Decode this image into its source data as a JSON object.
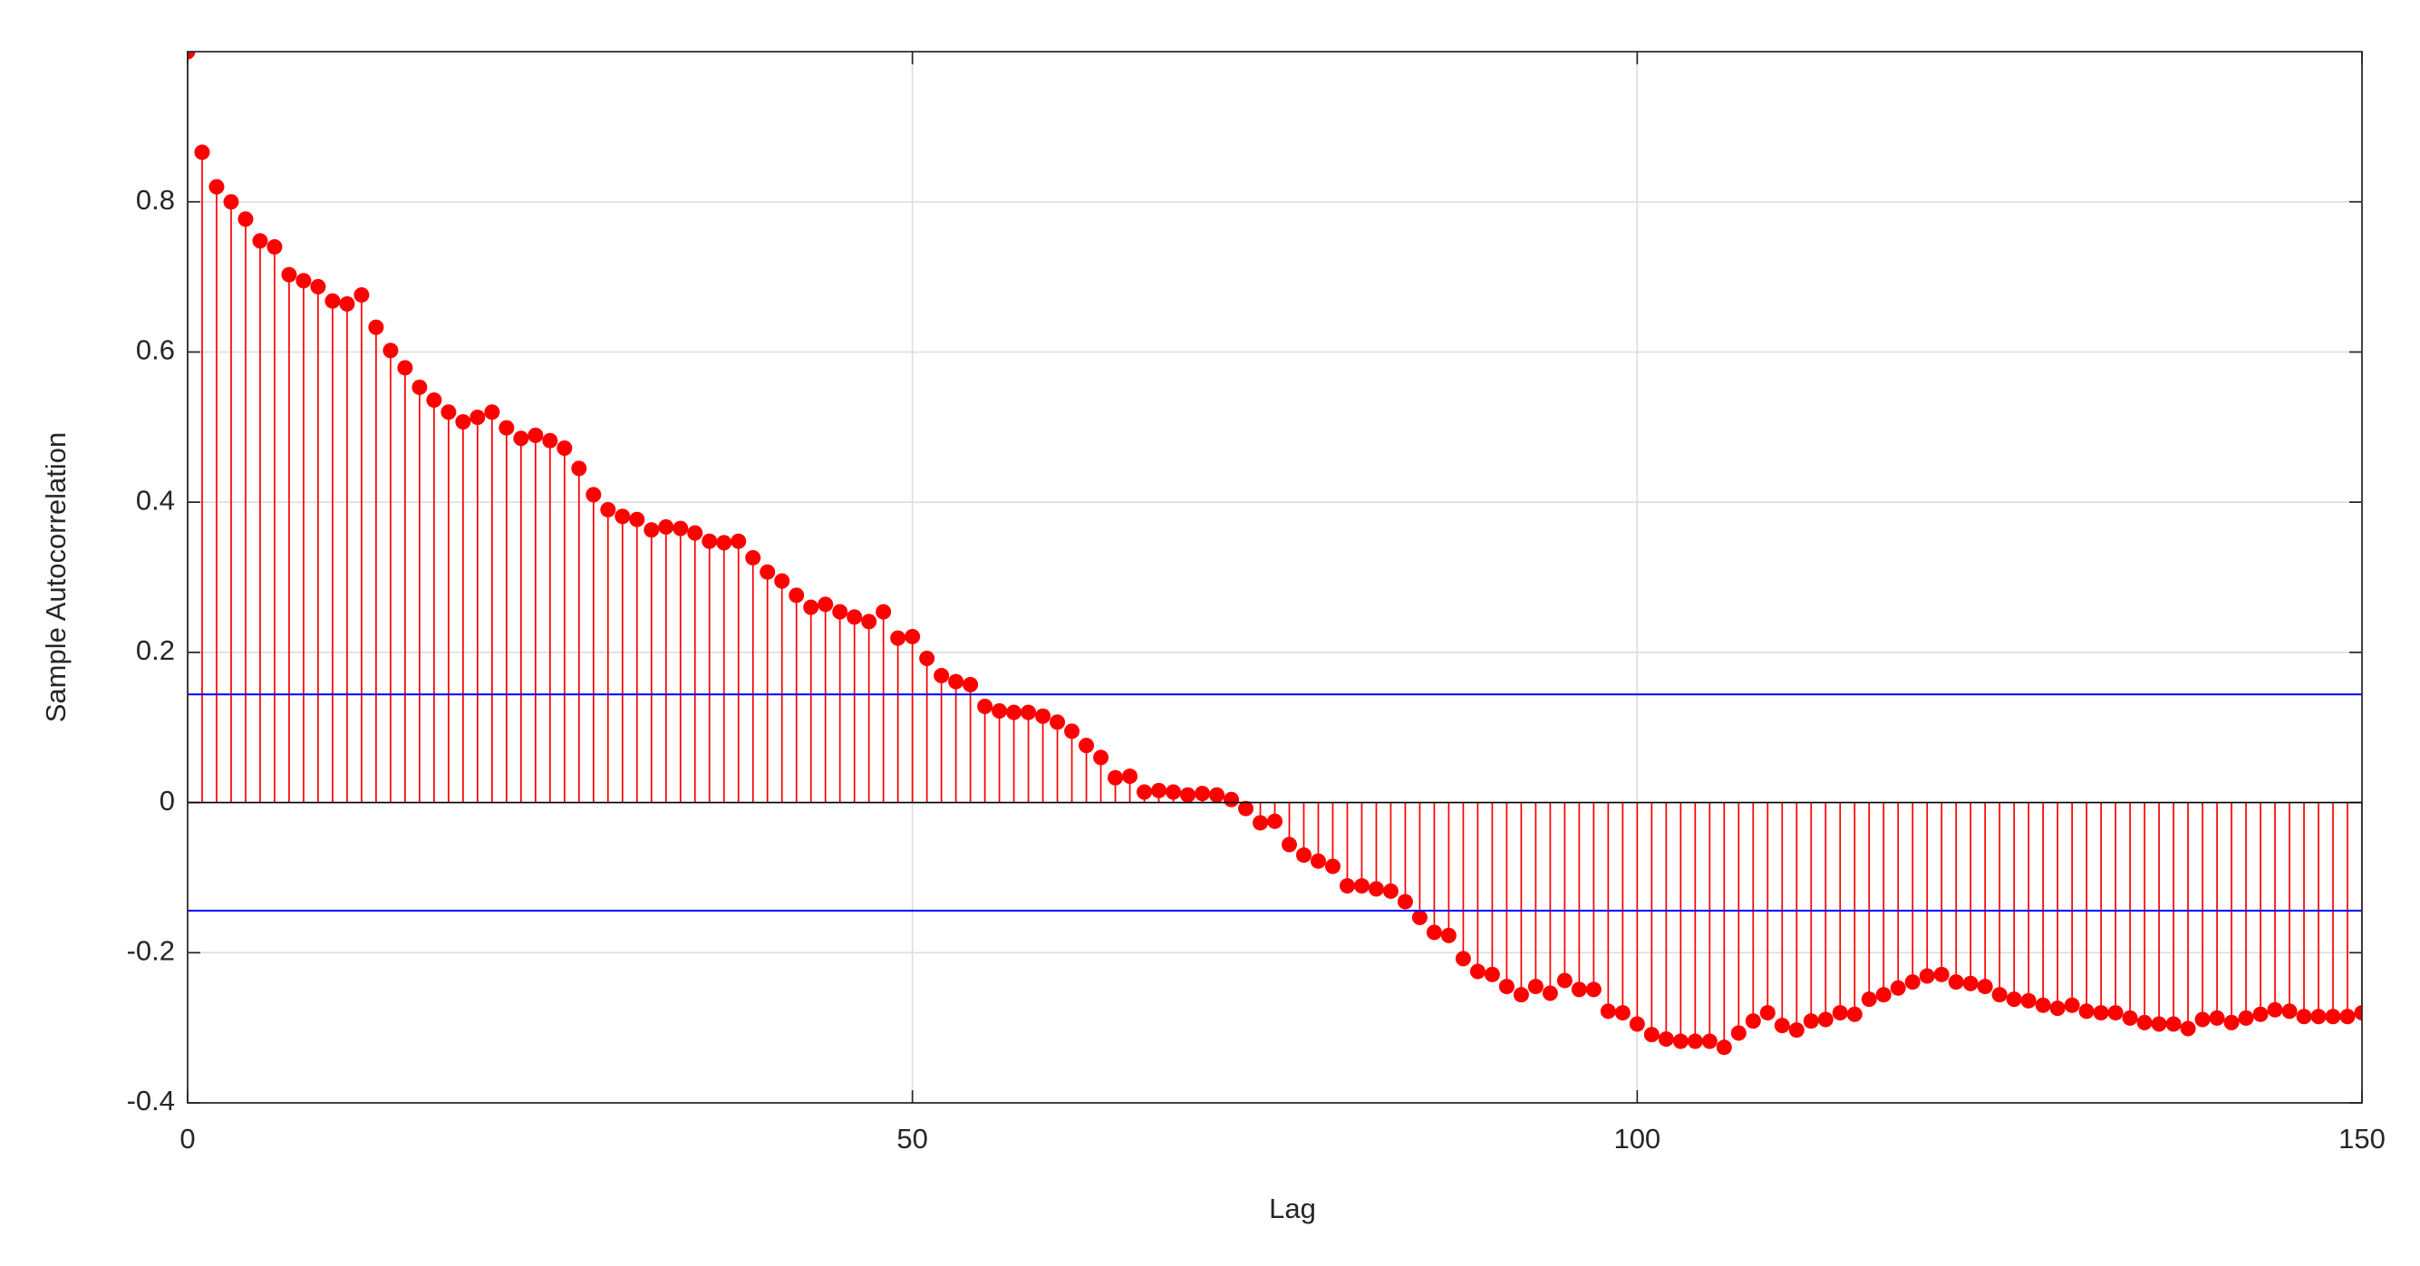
{
  "chart_data": {
    "type": "stem",
    "xlabel": "Lag",
    "ylabel": "Sample Autocorrelation",
    "x": [
      0,
      1,
      2,
      3,
      4,
      5,
      6,
      7,
      8,
      9,
      10,
      11,
      12,
      13,
      14,
      15,
      16,
      17,
      18,
      19,
      20,
      21,
      22,
      23,
      24,
      25,
      26,
      27,
      28,
      29,
      30,
      31,
      32,
      33,
      34,
      35,
      36,
      37,
      38,
      39,
      40,
      41,
      42,
      43,
      44,
      45,
      46,
      47,
      48,
      49,
      50,
      51,
      52,
      53,
      54,
      55,
      56,
      57,
      58,
      59,
      60,
      61,
      62,
      63,
      64,
      65,
      66,
      67,
      68,
      69,
      70,
      71,
      72,
      73,
      74,
      75,
      76,
      77,
      78,
      79,
      80,
      81,
      82,
      83,
      84,
      85,
      86,
      87,
      88,
      89,
      90,
      91,
      92,
      93,
      94,
      95,
      96,
      97,
      98,
      99,
      100,
      101,
      102,
      103,
      104,
      105,
      106,
      107,
      108,
      109,
      110,
      111,
      112,
      113,
      114,
      115,
      116,
      117,
      118,
      119,
      120,
      121,
      122,
      123,
      124,
      125,
      126,
      127,
      128,
      129,
      130,
      131,
      132,
      133,
      134,
      135,
      136,
      137,
      138,
      139,
      140,
      141,
      142,
      143,
      144,
      145,
      146,
      147,
      148,
      149,
      150
    ],
    "series": [
      {
        "color": "#ff0000",
        "values": [
          1,
          0.866,
          0.82,
          0.8,
          0.777,
          0.748,
          0.74,
          0.703,
          0.695,
          0.687,
          0.668,
          0.664,
          0.676,
          0.633,
          0.602,
          0.579,
          0.553,
          0.536,
          0.52,
          0.507,
          0.513,
          0.52,
          0.499,
          0.485,
          0.489,
          0.482,
          0.472,
          0.445,
          0.41,
          0.39,
          0.381,
          0.377,
          0.363,
          0.367,
          0.365,
          0.359,
          0.348,
          0.346,
          0.348,
          0.326,
          0.307,
          0.295,
          0.276,
          0.26,
          0.264,
          0.254,
          0.247,
          0.241,
          0.254,
          0.219,
          0.221,
          0.192,
          0.169,
          0.161,
          0.157,
          0.128,
          0.122,
          0.12,
          0.12,
          0.115,
          0.107,
          0.095,
          0.076,
          0.06,
          0.033,
          0.035,
          0.014,
          0.016,
          0.014,
          0.01,
          0.012,
          0.01,
          0.004,
          -0.008,
          -0.027,
          -0.025,
          -0.056,
          -0.07,
          -0.078,
          -0.085,
          -0.111,
          -0.111,
          -0.115,
          -0.118,
          -0.132,
          -0.153,
          -0.173,
          -0.177,
          -0.208,
          -0.225,
          -0.229,
          -0.245,
          -0.256,
          -0.245,
          -0.254,
          -0.237,
          -0.249,
          -0.249,
          -0.278,
          -0.28,
          -0.295,
          -0.309,
          -0.315,
          -0.318,
          -0.318,
          -0.318,
          -0.326,
          -0.307,
          -0.291,
          -0.28,
          -0.297,
          -0.303,
          -0.291,
          -0.289,
          -0.28,
          -0.282,
          -0.262,
          -0.256,
          -0.247,
          -0.239,
          -0.231,
          -0.229,
          -0.239,
          -0.241,
          -0.245,
          -0.256,
          -0.262,
          -0.264,
          -0.27,
          -0.274,
          -0.27,
          -0.278,
          -0.28,
          -0.28,
          -0.287,
          -0.293,
          -0.295,
          -0.295,
          -0.301,
          -0.289,
          -0.287,
          -0.293,
          -0.287,
          -0.282,
          -0.276,
          -0.278,
          -0.285,
          -0.285,
          -0.285,
          -0.285,
          -0.28
        ]
      }
    ],
    "confidence_bounds": {
      "color": "#0000ff",
      "values": [
        0.144,
        -0.144
      ]
    },
    "xlim": [
      0,
      150
    ],
    "xticks": [
      0,
      50,
      100,
      150
    ],
    "ylim": [
      -0.4,
      1
    ],
    "yticks": [
      -0.4,
      -0.2,
      0,
      0.2,
      0.4,
      0.6,
      0.8
    ],
    "grid": true
  }
}
